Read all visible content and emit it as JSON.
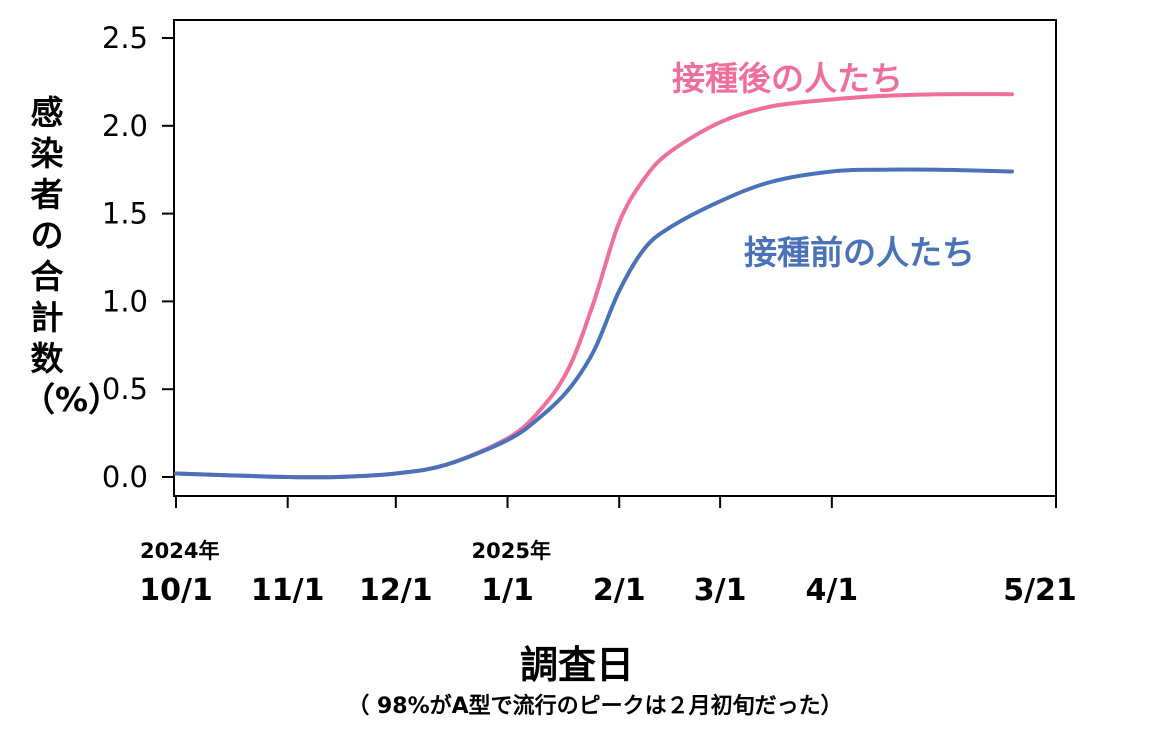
{
  "chart_data": {
    "type": "line",
    "ylabel": "感染者の合計数（%）",
    "xlabel": "調査日",
    "note": "（ 98%がA型で流行のピークは２月初旬だった）",
    "ylim": [
      0,
      2.5
    ],
    "y_ticks": [
      "0.0",
      "0.5",
      "1.0",
      "1.5",
      "2.0",
      "2.5"
    ],
    "x_ticks": [
      {
        "date": "2024-10-01",
        "label": "10/1",
        "year_label": "2024年"
      },
      {
        "date": "2024-11-01",
        "label": "11/1"
      },
      {
        "date": "2024-12-01",
        "label": "12/1"
      },
      {
        "date": "2025-01-01",
        "label": "1/1",
        "year_label": "2025年"
      },
      {
        "date": "2025-02-01",
        "label": "2/1"
      },
      {
        "date": "2025-03-01",
        "label": "3/1"
      },
      {
        "date": "2025-04-01",
        "label": "4/1"
      },
      {
        "date": "2025-05-21",
        "label": "5/21"
      }
    ],
    "series": [
      {
        "name": "接種後の人たち",
        "color": "#F06E9C",
        "points": [
          [
            "2024-10-01",
            0.02
          ],
          [
            "2024-10-15",
            0.01
          ],
          [
            "2024-11-01",
            0.0
          ],
          [
            "2024-11-15",
            0.0
          ],
          [
            "2024-12-01",
            0.02
          ],
          [
            "2024-12-15",
            0.07
          ],
          [
            "2025-01-01",
            0.22
          ],
          [
            "2025-01-10",
            0.38
          ],
          [
            "2025-01-18",
            0.62
          ],
          [
            "2025-01-25",
            1.0
          ],
          [
            "2025-02-01",
            1.45
          ],
          [
            "2025-02-08",
            1.7
          ],
          [
            "2025-02-15",
            1.85
          ],
          [
            "2025-03-01",
            2.02
          ],
          [
            "2025-03-15",
            2.11
          ],
          [
            "2025-04-01",
            2.15
          ],
          [
            "2025-04-15",
            2.17
          ],
          [
            "2025-05-01",
            2.18
          ],
          [
            "2025-05-21",
            2.18
          ]
        ]
      },
      {
        "name": "接種前の人たち",
        "color": "#4A72B8",
        "points": [
          [
            "2024-10-01",
            0.02
          ],
          [
            "2024-10-15",
            0.01
          ],
          [
            "2024-11-01",
            0.0
          ],
          [
            "2024-11-15",
            0.0
          ],
          [
            "2024-12-01",
            0.02
          ],
          [
            "2024-12-15",
            0.07
          ],
          [
            "2025-01-01",
            0.21
          ],
          [
            "2025-01-10",
            0.34
          ],
          [
            "2025-01-18",
            0.5
          ],
          [
            "2025-01-25",
            0.72
          ],
          [
            "2025-02-01",
            1.06
          ],
          [
            "2025-02-08",
            1.3
          ],
          [
            "2025-02-15",
            1.42
          ],
          [
            "2025-03-01",
            1.57
          ],
          [
            "2025-03-15",
            1.68
          ],
          [
            "2025-04-01",
            1.74
          ],
          [
            "2025-04-15",
            1.75
          ],
          [
            "2025-05-01",
            1.75
          ],
          [
            "2025-05-21",
            1.74
          ]
        ]
      }
    ]
  }
}
